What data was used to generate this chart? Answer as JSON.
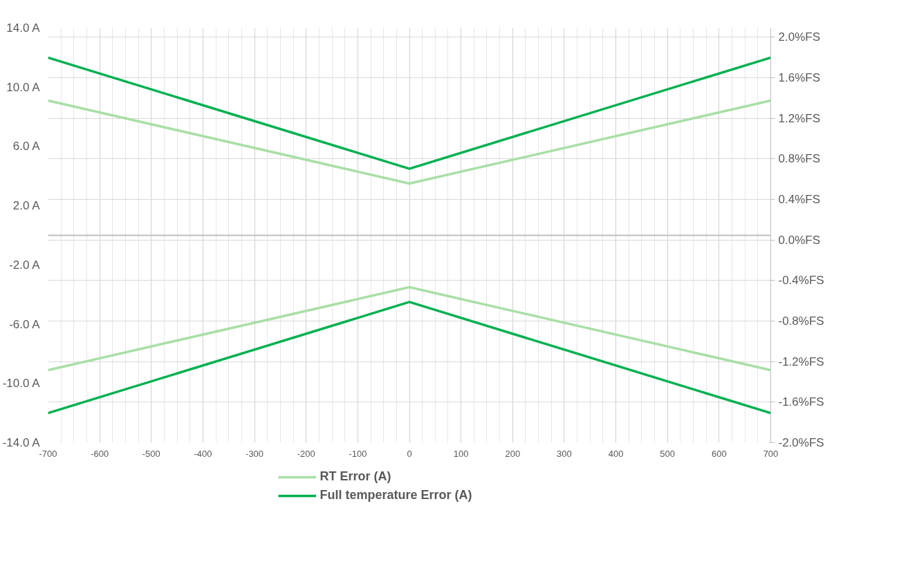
{
  "chart_data": {
    "type": "line",
    "x": [
      -700,
      0,
      700,
      0,
      -700,
      0,
      700
    ],
    "series": [
      {
        "name": "RT Error (A)",
        "color": "#a9dfa6",
        "values": [
          9.1,
          3.5,
          9.1,
          null,
          -9.1,
          -3.5,
          -9.1
        ]
      },
      {
        "name": "Full temperature Error (A)",
        "color": "#00b050",
        "values": [
          12.0,
          4.5,
          12.0,
          null,
          -12.0,
          -4.5,
          -12.0
        ]
      }
    ],
    "xlim": [
      -700,
      700
    ],
    "xticks": [
      -700,
      -600,
      -500,
      -400,
      -300,
      -200,
      -100,
      0,
      100,
      200,
      300,
      400,
      500,
      600,
      700
    ],
    "ylim": [
      -14,
      14
    ],
    "yticks": [
      {
        "value": -14,
        "label": "-14.0 A"
      },
      {
        "value": -10,
        "label": "-10.0 A"
      },
      {
        "value": -6,
        "label": "-6.0 A"
      },
      {
        "value": -2,
        "label": "-2.0 A"
      },
      {
        "value": 2,
        "label": "2.0 A"
      },
      {
        "value": 6,
        "label": "6.0 A"
      },
      {
        "value": 10,
        "label": "10.0 A"
      },
      {
        "value": 14,
        "label": "14.0 A"
      }
    ],
    "y2lim": [
      -2.0,
      2.09
    ],
    "y2ticks": [
      {
        "value": -2.0,
        "label": "-2.0%FS"
      },
      {
        "value": -1.6,
        "label": "-1.6%FS"
      },
      {
        "value": -1.2,
        "label": "-1.2%FS"
      },
      {
        "value": -0.8,
        "label": "-0.8%FS"
      },
      {
        "value": -0.4,
        "label": "-0.4%FS"
      },
      {
        "value": 0.0,
        "label": "0.0%FS"
      },
      {
        "value": 0.4,
        "label": "0.4%FS"
      },
      {
        "value": 0.8,
        "label": "0.8%FS"
      },
      {
        "value": 1.2,
        "label": "1.2%FS"
      },
      {
        "value": 1.6,
        "label": "1.6%FS"
      },
      {
        "value": 2.0,
        "label": "2.0%FS"
      }
    ],
    "grid": true,
    "legend": "bottom",
    "marker": "none",
    "line_style": "solid"
  }
}
